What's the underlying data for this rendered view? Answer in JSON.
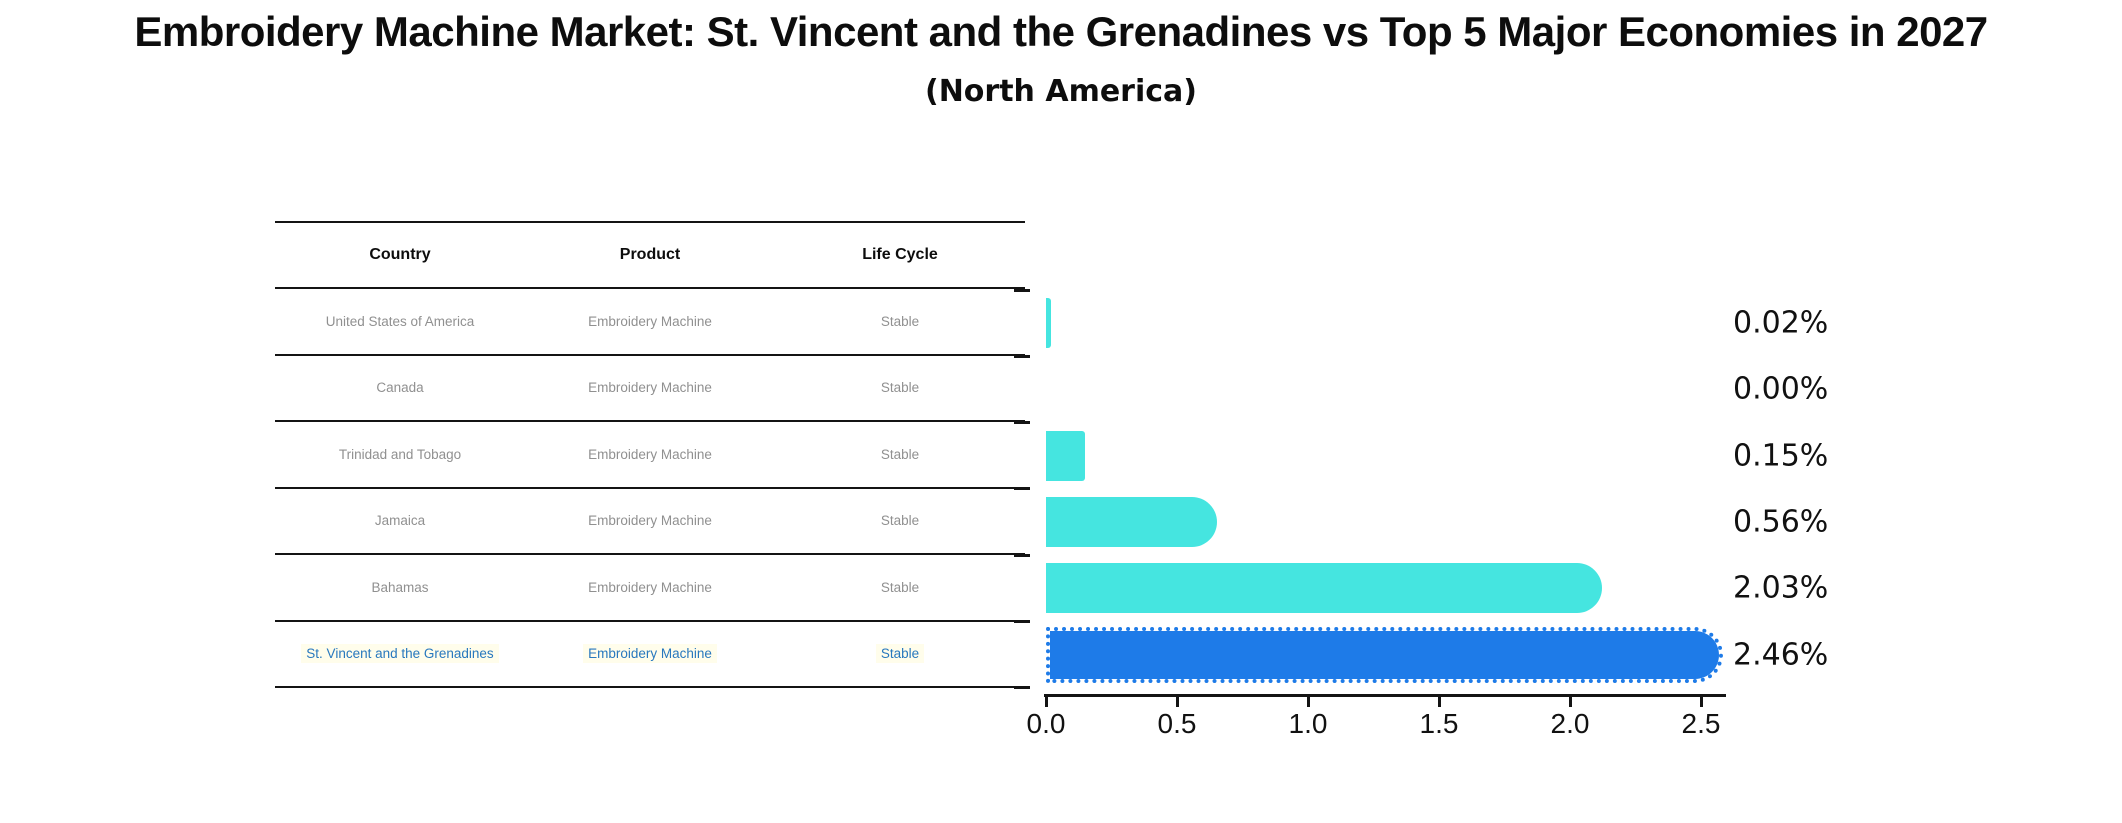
{
  "title": "Embroidery Machine Market: St. Vincent and the Grenadines vs Top 5 Major Economies in 2027",
  "subtitle": "(North America)",
  "table": {
    "headers": [
      "Country",
      "Product",
      "Life Cycle"
    ],
    "rows": [
      {
        "country": "United States of America",
        "product": "Embroidery Machine",
        "life_cycle": "Stable",
        "highlight": false
      },
      {
        "country": "Canada",
        "product": "Embroidery Machine",
        "life_cycle": "Stable",
        "highlight": false
      },
      {
        "country": "Trinidad and Tobago",
        "product": "Embroidery Machine",
        "life_cycle": "Stable",
        "highlight": false
      },
      {
        "country": "Jamaica",
        "product": "Embroidery Machine",
        "life_cycle": "Stable",
        "highlight": false
      },
      {
        "country": "Bahamas",
        "product": "Embroidery Machine",
        "life_cycle": "Stable",
        "highlight": false
      },
      {
        "country": "St. Vincent and the Grenadines",
        "product": "Embroidery Machine",
        "life_cycle": "Stable",
        "highlight": true
      }
    ]
  },
  "chart_data": {
    "type": "bar",
    "orientation": "horizontal",
    "title": "Embroidery Machine Market: St. Vincent and the Grenadines vs Top 5 Major Economies in 2027",
    "subtitle": "(North America)",
    "categories": [
      "United States of America",
      "Canada",
      "Trinidad and Tobago",
      "Jamaica",
      "Bahamas",
      "St. Vincent and the Grenadines"
    ],
    "values": [
      0.02,
      0.0,
      0.15,
      0.56,
      2.03,
      2.46
    ],
    "value_labels": [
      "0.02%",
      "0.00%",
      "0.15%",
      "0.56%",
      "2.03%",
      "2.46%"
    ],
    "xlabel": "",
    "ylabel": "",
    "xlim": [
      0,
      2.6
    ],
    "xticks": [
      0.0,
      0.5,
      1.0,
      1.5,
      2.0,
      2.5
    ],
    "xtick_labels": [
      "0.0",
      "0.5",
      "1.0",
      "1.5",
      "2.0",
      "2.5"
    ],
    "grid": false,
    "legend": false,
    "highlight_index": 5,
    "highlight_style": "dotted-border"
  },
  "colors": {
    "bar": "#45E5E0",
    "highlight_bar": "#1E7BE8",
    "highlight_text": "#2878BE",
    "table_text": "#909090",
    "line": "#141414",
    "label_text": "#111111"
  }
}
